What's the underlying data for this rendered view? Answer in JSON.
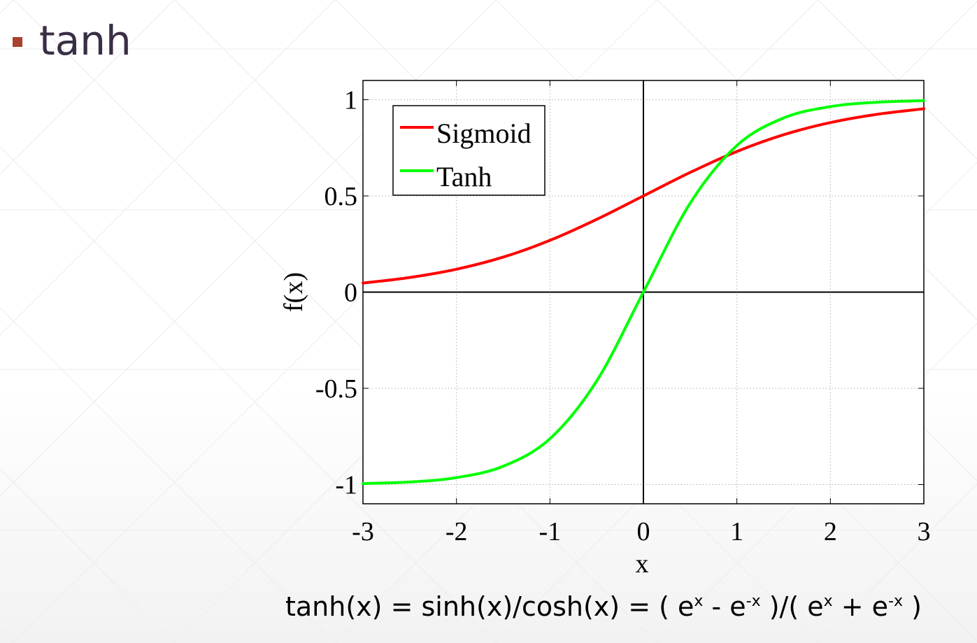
{
  "slide": {
    "title": "tanh",
    "formula": {
      "lhs": "tanh(x) = sinh(x)/cosh(x) = ( e",
      "p1": "x",
      "m1": " - e",
      "p2": "-x",
      "m2": " )/( e",
      "p3": "x",
      "m3": " + e",
      "p4": "-x",
      "m4": " )"
    }
  },
  "chart_data": {
    "type": "line",
    "xlabel": "x",
    "ylabel": "f(x)",
    "xlim": [
      -3,
      3
    ],
    "ylim": [
      -1.1,
      1.1
    ],
    "xticks": [
      -3,
      -2,
      -1,
      0,
      1,
      2,
      3
    ],
    "yticks": [
      -1,
      -0.5,
      0,
      0.5,
      1
    ],
    "grid": true,
    "legend_position": "top-left",
    "series": [
      {
        "name": "Sigmoid",
        "color": "#ff0000",
        "x": [
          -3,
          -2.5,
          -2,
          -1.5,
          -1,
          -0.5,
          0,
          0.5,
          1,
          1.5,
          2,
          2.5,
          3
        ],
        "y": [
          0.047,
          0.076,
          0.119,
          0.182,
          0.269,
          0.378,
          0.5,
          0.622,
          0.731,
          0.818,
          0.881,
          0.924,
          0.953
        ]
      },
      {
        "name": "Tanh",
        "color": "#00ff00",
        "x": [
          -3,
          -2.5,
          -2,
          -1.5,
          -1,
          -0.5,
          0,
          0.5,
          1,
          1.5,
          2,
          2.5,
          3
        ],
        "y": [
          -0.995,
          -0.987,
          -0.964,
          -0.905,
          -0.762,
          -0.462,
          0,
          0.462,
          0.762,
          0.905,
          0.964,
          0.987,
          0.995
        ]
      }
    ]
  }
}
